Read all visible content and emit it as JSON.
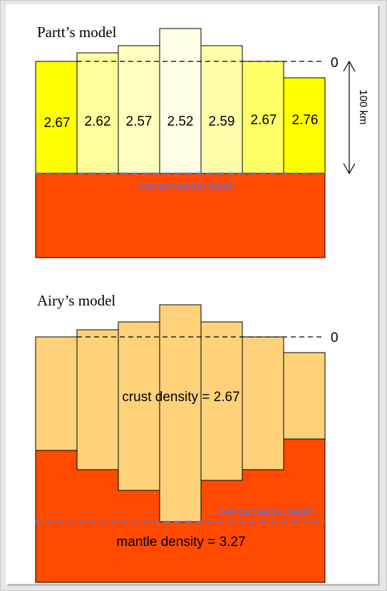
{
  "pratt": {
    "title": "Partt’s model",
    "densities": [
      "2.67",
      "2.62",
      "2.57",
      "2.52",
      "2.59",
      "2.67",
      "2.76"
    ],
    "colors": [
      "#ffff00",
      "#ffff99",
      "#ffffc0",
      "#ffffe6",
      "#ffffaa",
      "#ffff66",
      "#ffff00"
    ],
    "zero_label": "0",
    "depth_label": "100 km",
    "compensation_label": "compensation depth"
  },
  "airy": {
    "title": "Airy’s model",
    "zero_label": "0",
    "crust_label": "crust density = 2.67",
    "mantle_label": "mantle density = 3.27",
    "compensation_label": "compensation depth"
  },
  "colors": {
    "mantle": "#ff4a00",
    "crust_airy": "#ffd27a",
    "compensation_line": "#5a6ee8",
    "compensation_text": "#5a6ee8"
  }
}
